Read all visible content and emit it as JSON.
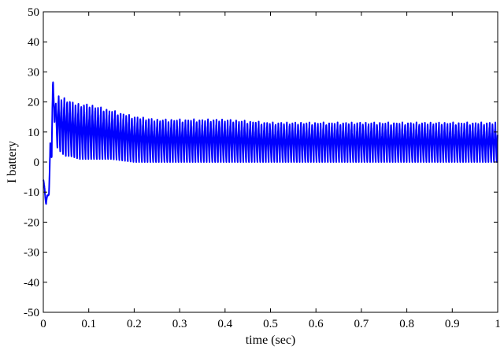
{
  "chart_data": {
    "type": "line",
    "title": "",
    "xlabel": "time (sec)",
    "ylabel": "I battery",
    "xlim": [
      0,
      1
    ],
    "ylim": [
      -50,
      50
    ],
    "xticks": [
      0,
      0.1,
      0.2,
      0.3,
      0.4,
      0.5,
      0.6,
      0.7,
      0.8,
      0.9,
      1
    ],
    "xtick_labels": [
      "0",
      "0.1",
      "0.2",
      "0.3",
      "0.4",
      "0.5",
      "0.6",
      "0.7",
      "0.8",
      "0.9",
      "1"
    ],
    "yticks": [
      -50,
      -40,
      -30,
      -20,
      -10,
      0,
      10,
      20,
      30,
      40,
      50
    ],
    "ytick_labels": [
      "-50",
      "-40",
      "-30",
      "-20",
      "-10",
      "0",
      "10",
      "20",
      "30",
      "40",
      "50"
    ],
    "grid": false,
    "legend": false,
    "series": [
      {
        "color": "#0000ff",
        "x": [
          0.0,
          0.003,
          0.006,
          0.009,
          0.012,
          0.015,
          0.018,
          0.021,
          0.024,
          0.027,
          0.03,
          0.035,
          0.04,
          0.05,
          0.06,
          0.08,
          0.1,
          0.15,
          0.2,
          0.25,
          0.3,
          0.4,
          0.5,
          0.6,
          0.7,
          0.8,
          0.9,
          1.0
        ],
        "upper": [
          -4,
          -9,
          -12,
          -11,
          -9,
          5,
          18,
          27,
          30,
          19,
          22,
          22,
          21,
          21,
          20,
          19,
          19,
          17,
          15,
          14,
          14,
          14,
          13,
          13,
          13,
          13,
          13,
          13
        ],
        "lower": [
          -6,
          -12,
          -14,
          -13,
          -11,
          -8,
          0,
          10,
          16,
          6,
          5,
          4,
          3,
          2,
          2,
          1,
          1,
          1,
          0,
          0,
          0,
          0,
          0,
          0,
          0,
          0,
          0,
          0
        ],
        "oscillation_period": 0.0062
      }
    ]
  }
}
